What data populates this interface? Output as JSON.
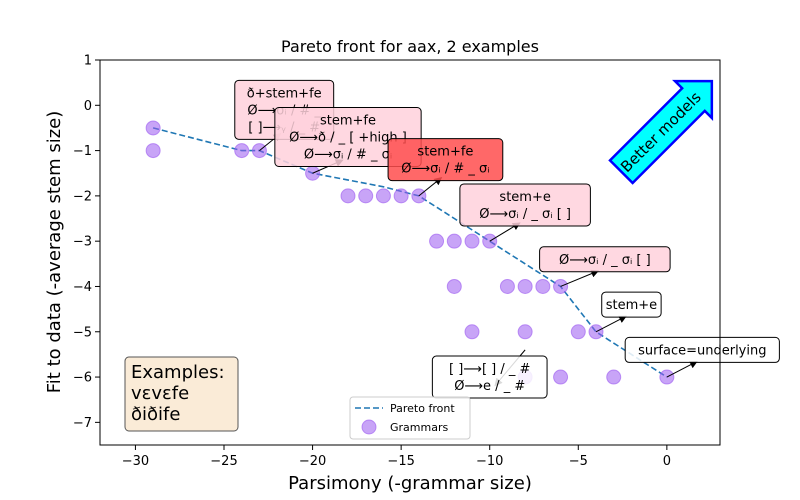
{
  "chart_data": {
    "type": "scatter",
    "title": "Pareto front for aax, 2 examples",
    "xlabel": "Parsimony (-grammar size)",
    "ylabel": "Fit to data (-average stem size)",
    "xlim": [
      -32,
      3
    ],
    "ylim": [
      -7.5,
      1
    ],
    "xticks": [
      -30,
      -25,
      -20,
      -15,
      -10,
      -5,
      0
    ],
    "yticks": [
      1,
      0,
      -1,
      -2,
      -3,
      -4,
      -5,
      -6,
      -7
    ],
    "grid": false,
    "legend_position": "bottom-center",
    "series": [
      {
        "name": "Pareto front",
        "kind": "line",
        "color": "#1f77b4",
        "x": [
          -29,
          -24,
          -23,
          -20,
          -16,
          -14,
          -12,
          -10,
          -6,
          -4,
          0
        ],
        "y": [
          -0.5,
          -1,
          -1,
          -1.5,
          -1.8,
          -2,
          -2.5,
          -3,
          -4,
          -5,
          -6
        ]
      },
      {
        "name": "Grammars",
        "kind": "scatter",
        "color": "#9b59f0",
        "x": [
          -29,
          -29,
          -24,
          -23,
          -20,
          -18,
          -17,
          -16,
          -15,
          -14,
          -13,
          -12,
          -11,
          -10,
          -12,
          -9,
          -8,
          -7,
          -6,
          -11,
          -8,
          -5,
          -4,
          -8,
          -6,
          -3,
          0
        ],
        "y": [
          -0.5,
          -1,
          -1,
          -1,
          -1.5,
          -2,
          -2,
          -2,
          -2,
          -2,
          -3,
          -3,
          -3,
          -3,
          -4,
          -4,
          -4,
          -4,
          -4,
          -5,
          -5,
          -5,
          -5,
          -6,
          -6,
          -6,
          -6
        ]
      }
    ],
    "annotations": [
      {
        "lines": [
          "ð+stem+fe",
          "Ø⟶σᵢ / # _",
          "[ ]⟶ᵧ / _ #"
        ],
        "box_x": -21.6,
        "box_y": -0.1,
        "point": [
          -23,
          -1
        ],
        "face": "#ffd1dc"
      },
      {
        "lines": [
          "stem+fe",
          "Ø⟶ð / _ [ +high ]",
          "Ø⟶σᵢ / # _ σᵢ"
        ],
        "box_x": -18,
        "box_y": -0.7,
        "point": [
          -20,
          -1.5
        ],
        "face": "#ffd1dc"
      },
      {
        "lines": [
          "stem+fe",
          "Ø⟶σᵢ / # _ σᵢ"
        ],
        "box_x": -12.5,
        "box_y": -1.2,
        "point": [
          -14,
          -2
        ],
        "face": "#ff4d4d"
      },
      {
        "lines": [
          "stem+e",
          "Ø⟶σᵢ / _ σᵢ [ ]"
        ],
        "box_x": -8,
        "box_y": -2.2,
        "point": [
          -10,
          -3
        ],
        "face": "#ffd1dc"
      },
      {
        "lines": [
          "Ø⟶σᵢ / _ σᵢ [ ]"
        ],
        "box_x": -3.5,
        "box_y": -3.4,
        "point": [
          -6,
          -4
        ],
        "face": "#ffd1dc"
      },
      {
        "lines": [
          "stem+e"
        ],
        "box_x": -2,
        "box_y": -4.4,
        "point": [
          -4,
          -5
        ],
        "face": "#ffffff"
      },
      {
        "lines": [
          "surface=underlying"
        ],
        "box_x": 2,
        "box_y": -5.4,
        "point": [
          0,
          -6
        ],
        "face": "#ffffff"
      },
      {
        "lines": [
          "[ ]⟶[ ] / _ #",
          "Ø⟶e / _ #"
        ],
        "box_x": -10,
        "box_y": -6,
        "point": [
          -8,
          -5.4
        ],
        "face": "#ffffff"
      }
    ],
    "examples_box": {
      "lines": [
        "Examples:",
        "vɛvɛfe",
        "ðiðife"
      ],
      "face": "#faebd7"
    },
    "better_models_label": "Better models",
    "better_models_colors": {
      "fill": "#00ffff",
      "edge": "#0000ff"
    }
  }
}
